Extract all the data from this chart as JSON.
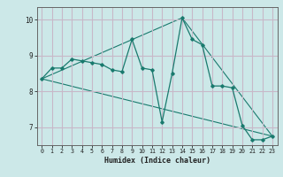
{
  "xlabel": "Humidex (Indice chaleur)",
  "bg_color": "#cce8e8",
  "plot_bg_color": "#cce8e8",
  "line_color": "#1a7a6e",
  "grid_color": "#c8b8c8",
  "xlim": [
    -0.5,
    23.5
  ],
  "ylim": [
    6.5,
    10.35
  ],
  "yticks": [
    7,
    8,
    9,
    10
  ],
  "xticks": [
    0,
    1,
    2,
    3,
    4,
    5,
    6,
    7,
    8,
    9,
    10,
    11,
    12,
    13,
    14,
    15,
    16,
    17,
    18,
    19,
    20,
    21,
    22,
    23
  ],
  "series1_x": [
    0,
    1,
    2,
    3,
    4,
    5,
    6,
    7,
    8,
    9,
    10,
    11,
    12,
    13,
    14,
    15,
    16,
    17,
    18,
    19,
    20,
    21,
    22,
    23
  ],
  "series1_y": [
    8.35,
    8.65,
    8.65,
    8.9,
    8.85,
    8.8,
    8.75,
    8.6,
    8.55,
    9.45,
    8.65,
    8.6,
    7.15,
    8.5,
    10.05,
    9.45,
    9.3,
    8.15,
    8.15,
    8.1,
    7.05,
    6.65,
    6.65,
    6.75
  ],
  "series2_x": [
    0,
    23
  ],
  "series2_y": [
    8.35,
    6.75
  ],
  "series3_x": [
    0,
    14,
    23
  ],
  "series3_y": [
    8.35,
    10.05,
    6.75
  ]
}
